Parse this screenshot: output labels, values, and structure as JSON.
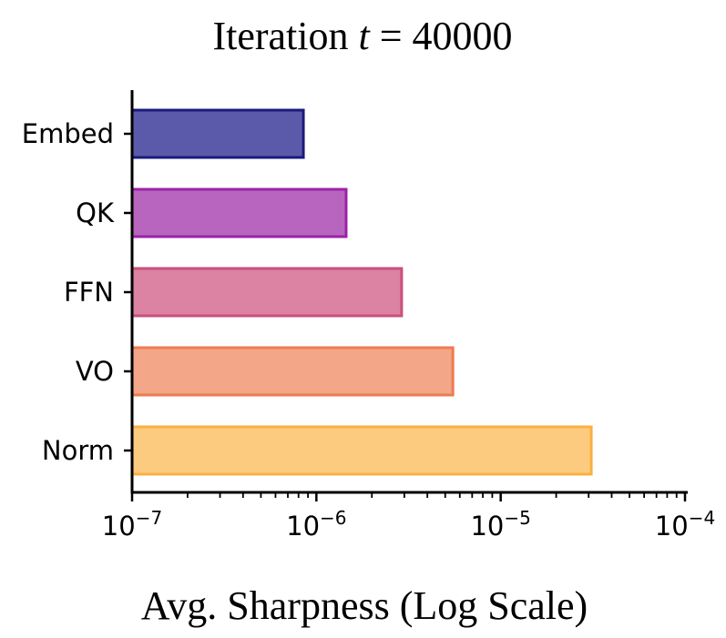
{
  "chart_data": {
    "type": "bar",
    "orientation": "horizontal",
    "title_prefix": "Iteration ",
    "title_var": "t",
    "title_suffix": " = 40000",
    "xlabel": "Avg. Sharpness (Log Scale)",
    "ylabel": "",
    "xscale": "log",
    "xlim": [
      1e-07,
      0.0001
    ],
    "grid": false,
    "legend": "none",
    "categories": [
      "Embed",
      "QK",
      "FFN",
      "VO",
      "Norm"
    ],
    "values": [
      8.5e-07,
      1.45e-06,
      2.9e-06,
      5.5e-06,
      3.1e-05
    ],
    "x_tick_labels": [
      {
        "base": "10",
        "exp": "−7"
      },
      {
        "base": "10",
        "exp": "−6"
      },
      {
        "base": "10",
        "exp": "−5"
      },
      {
        "base": "10",
        "exp": "−4"
      }
    ],
    "colors": [
      {
        "fill": "#5b5aaa",
        "edge": "#1a1a7e"
      },
      {
        "fill": "#b865bf",
        "edge": "#9c22a8"
      },
      {
        "fill": "#dc82a3",
        "edge": "#c8507e"
      },
      {
        "fill": "#f3a688",
        "edge": "#ee7a50"
      },
      {
        "fill": "#fccb80",
        "edge": "#f9b040"
      }
    ]
  }
}
